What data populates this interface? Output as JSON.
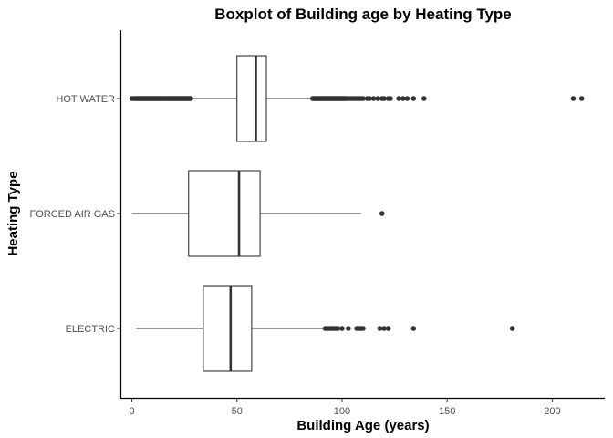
{
  "chart_data": {
    "type": "boxplot",
    "title": "Boxplot of Building age by Heating Type",
    "xlabel": "Building Age (years)",
    "ylabel": "Heating Type",
    "xlim": [
      -5,
      225
    ],
    "x_ticks": [
      0,
      50,
      100,
      150,
      200
    ],
    "orientation": "horizontal",
    "colors": {
      "box_stroke": "#333333",
      "box_fill": "#ffffff",
      "outlier": "#333333"
    },
    "categories": [
      "HOT WATER",
      "FORCED AIR GAS",
      "ELECTRIC"
    ],
    "boxes": [
      {
        "category": "HOT WATER",
        "whisker_low": 0,
        "q1": 50,
        "median": 59,
        "q3": 64,
        "whisker_high": 85,
        "outliers": [
          0,
          1,
          1.5,
          2,
          2.5,
          3,
          3.5,
          4,
          4.5,
          5,
          5.5,
          6,
          6.5,
          7,
          7.5,
          8,
          8.5,
          9,
          9.5,
          10,
          10.5,
          11,
          11.5,
          12,
          12.5,
          13,
          13.5,
          14,
          14.5,
          15,
          15.5,
          16,
          16.5,
          17,
          17.5,
          18,
          18.5,
          19,
          19.5,
          20,
          20.5,
          21,
          21.5,
          22,
          22.5,
          23,
          23.5,
          24,
          24.5,
          25,
          25.5,
          26,
          26.5,
          27,
          27.5,
          28,
          86,
          86.5,
          87,
          87.5,
          88,
          88.5,
          89,
          89.5,
          90,
          90.5,
          91,
          91.5,
          92,
          92.5,
          93,
          93.5,
          94,
          94.5,
          95,
          95.5,
          96,
          96.5,
          97,
          97.5,
          98,
          98.5,
          99,
          99.5,
          100,
          100.5,
          101,
          101.5,
          102,
          103,
          104,
          105,
          106,
          107,
          108,
          109,
          110,
          112,
          113,
          115,
          117,
          119,
          120,
          122,
          123,
          127,
          129,
          131,
          134,
          139,
          210,
          214
        ]
      },
      {
        "category": "FORCED AIR GAS",
        "whisker_low": 0,
        "q1": 27,
        "median": 51,
        "q3": 61,
        "whisker_high": 109,
        "outliers": [
          119
        ]
      },
      {
        "category": "ELECTRIC",
        "whisker_low": 2,
        "q1": 34,
        "median": 47,
        "q3": 57,
        "whisker_high": 91,
        "outliers": [
          92,
          93,
          94,
          95,
          96,
          97,
          98,
          100,
          103,
          107,
          108,
          109,
          110,
          118,
          120,
          122,
          134,
          181
        ]
      }
    ]
  }
}
